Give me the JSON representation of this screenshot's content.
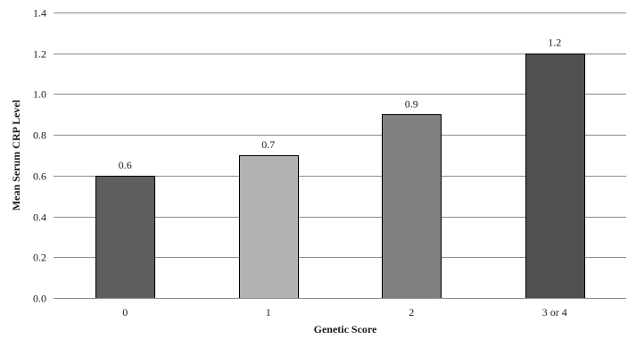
{
  "chart_data": {
    "type": "bar",
    "categories": [
      "0",
      "1",
      "2",
      "3 or 4"
    ],
    "values": [
      0.6,
      0.7,
      0.9,
      1.2
    ],
    "data_labels": [
      "0.6",
      "0.7",
      "0.9",
      "1.2"
    ],
    "bar_colors": [
      "#5f5f5f",
      "#b2b2b2",
      "#808080",
      "#505050"
    ],
    "title": "",
    "xlabel": "Genetic Score",
    "ylabel": "Mean Serum CRP Level",
    "ylim": [
      0,
      1.4
    ],
    "yticks": [
      0.0,
      0.2,
      0.4,
      0.6,
      0.8,
      1.0,
      1.2,
      1.4
    ],
    "ytick_labels": [
      "0.0",
      "0.2",
      "0.4",
      "0.6",
      "0.8",
      "1.0",
      "1.2",
      "1.4"
    ],
    "grid": true,
    "legend": "none"
  }
}
